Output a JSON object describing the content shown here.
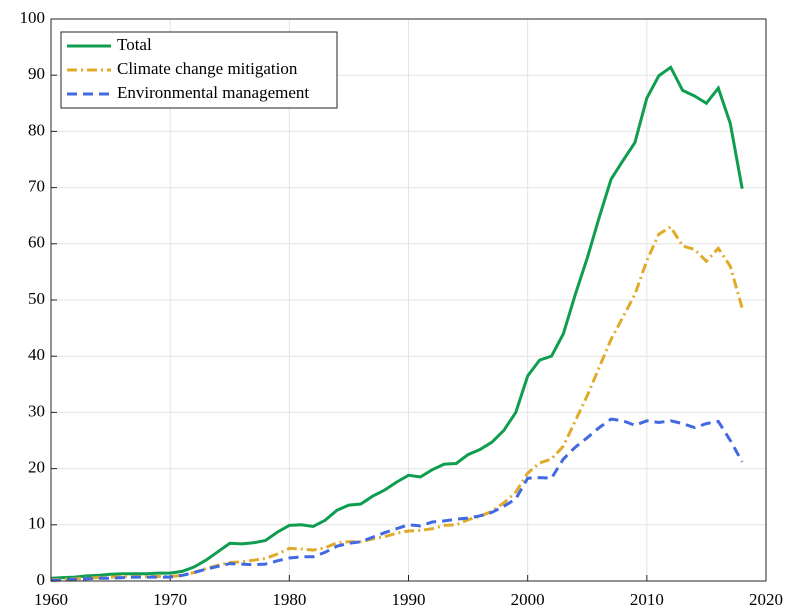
{
  "chart_data": {
    "type": "line",
    "x": [
      1960,
      1961,
      1962,
      1963,
      1964,
      1965,
      1966,
      1967,
      1968,
      1969,
      1970,
      1971,
      1972,
      1973,
      1974,
      1975,
      1976,
      1977,
      1978,
      1979,
      1980,
      1981,
      1982,
      1983,
      1984,
      1985,
      1986,
      1987,
      1988,
      1989,
      1990,
      1991,
      1992,
      1993,
      1994,
      1995,
      1996,
      1997,
      1998,
      1999,
      2000,
      2001,
      2002,
      2003,
      2004,
      2005,
      2006,
      2007,
      2008,
      2009,
      2010,
      2011,
      2012,
      2013,
      2014,
      2015,
      2016,
      2017,
      2018
    ],
    "series": [
      {
        "name": "Total",
        "color": "#0f9d4f",
        "line_style": "solid",
        "values": [
          0.5,
          0.6,
          0.7,
          0.9,
          1.0,
          1.2,
          1.3,
          1.3,
          1.3,
          1.4,
          1.4,
          1.7,
          2.5,
          3.7,
          5.2,
          6.7,
          6.6,
          6.8,
          7.2,
          8.7,
          9.9,
          10.0,
          9.7,
          10.8,
          12.6,
          13.5,
          13.7,
          15.1,
          16.2,
          17.6,
          18.8,
          18.5,
          19.8,
          20.8,
          20.9,
          22.5,
          23.4,
          24.7,
          26.8,
          30.0,
          36.5,
          39.3,
          40.0,
          44.0,
          51.0,
          57.5,
          64.7,
          71.5,
          74.8,
          78.0,
          85.9,
          89.9,
          91.4,
          87.3,
          86.3,
          85.0,
          87.7,
          81.4,
          69.8
        ]
      },
      {
        "name": "Climate change mitigation",
        "color": "#e0ab2a",
        "line_style": "dashdot",
        "values": [
          0.2,
          0.3,
          0.4,
          0.5,
          0.6,
          0.7,
          0.8,
          0.8,
          0.8,
          0.8,
          0.8,
          1.0,
          1.5,
          2.2,
          2.8,
          3.3,
          3.4,
          3.7,
          4.0,
          4.8,
          5.8,
          5.7,
          5.5,
          5.9,
          6.8,
          7.0,
          7.0,
          7.5,
          7.9,
          8.5,
          8.9,
          9.0,
          9.3,
          9.9,
          10.0,
          10.9,
          11.5,
          12.4,
          13.9,
          15.8,
          19.2,
          21.0,
          21.7,
          24.0,
          28.5,
          33.0,
          38.0,
          43.0,
          47.0,
          51.0,
          57.0,
          61.7,
          63.0,
          59.6,
          59.0,
          56.9,
          59.2,
          56.0,
          48.5
        ]
      },
      {
        "name": "Environmental management",
        "color": "#4169e1",
        "line_style": "dashed",
        "values": [
          0.1,
          0.2,
          0.3,
          0.4,
          0.5,
          0.5,
          0.6,
          0.7,
          0.7,
          0.7,
          0.7,
          1.0,
          1.5,
          2.1,
          2.6,
          3.1,
          3.0,
          2.9,
          3.0,
          3.6,
          4.1,
          4.3,
          4.3,
          5.1,
          6.2,
          6.7,
          7.0,
          7.8,
          8.6,
          9.3,
          10.0,
          9.8,
          10.5,
          10.7,
          11.0,
          11.2,
          11.6,
          12.2,
          13.3,
          14.6,
          18.3,
          18.4,
          18.3,
          21.7,
          23.8,
          25.5,
          27.3,
          28.8,
          28.5,
          27.7,
          28.5,
          28.2,
          28.5,
          28.0,
          27.3,
          28.0,
          28.4,
          25.0,
          21.2
        ]
      }
    ],
    "xlim": [
      1960,
      2020
    ],
    "xticks": [
      1960,
      1970,
      1980,
      1990,
      2000,
      2010,
      2020
    ],
    "ylim": [
      0,
      100
    ],
    "yticks": [
      0,
      10,
      20,
      30,
      40,
      50,
      60,
      70,
      80,
      90,
      100
    ],
    "grid": true,
    "legend": "upper-left"
  }
}
